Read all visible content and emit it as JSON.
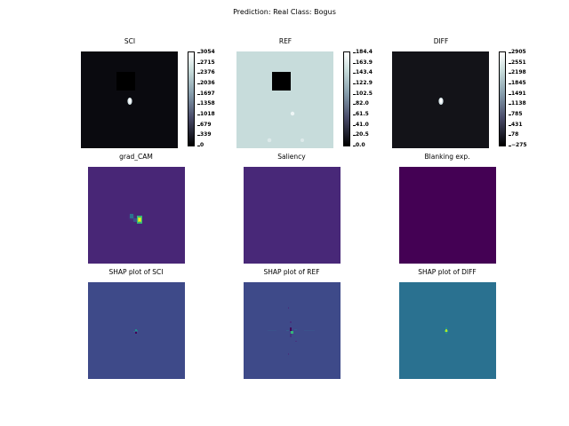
{
  "figure": {
    "suptitle": "Prediction: Real  Class: Bogus"
  },
  "chart_data": [
    {
      "type": "heatmap",
      "title": "SCI",
      "colormap": "bone",
      "background": "#0a0a0f",
      "colorbar_ticks": [
        "3054",
        "2715",
        "2376",
        "2036",
        "1697",
        "1358",
        "1018",
        "679",
        "339",
        "0"
      ]
    },
    {
      "type": "heatmap",
      "title": "REF",
      "colormap": "bone",
      "background": "#c7dcdb",
      "colorbar_ticks": [
        "184.4",
        "163.9",
        "143.4",
        "122.9",
        "102.5",
        "82.0",
        "61.5",
        "41.0",
        "20.5",
        "0.0"
      ]
    },
    {
      "type": "heatmap",
      "title": "DIFF",
      "colormap": "bone",
      "background": "#131318",
      "colorbar_ticks": [
        "2905",
        "2551",
        "2198",
        "1845",
        "1491",
        "1138",
        "785",
        "431",
        "78",
        "−275"
      ]
    },
    {
      "type": "heatmap",
      "title": "grad_CAM",
      "colormap": "viridis",
      "background": "#482676"
    },
    {
      "type": "heatmap",
      "title": "Saliency",
      "colormap": "viridis",
      "background": "#482878"
    },
    {
      "type": "heatmap",
      "title": "Blanking exp.",
      "colormap": "viridis",
      "background": "#440154"
    },
    {
      "type": "heatmap",
      "title": "SHAP plot of SCI",
      "colormap": "viridis",
      "background": "#3e4a89"
    },
    {
      "type": "heatmap",
      "title": "SHAP plot of REF",
      "colormap": "viridis",
      "background": "#3e4a89"
    },
    {
      "type": "heatmap",
      "title": "SHAP plot of DIFF",
      "colormap": "viridis",
      "background": "#2a7190"
    }
  ]
}
